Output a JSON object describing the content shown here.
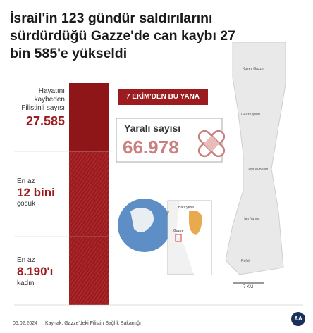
{
  "title": "İsrail'in 123 gündür saldırılarını sürdürdüğü Gazze'de can kaybı 27 bin 585'e yükseldi",
  "killed": {
    "label": "Hayatını kaybeden Filistinli sayısı",
    "value": "27.585"
  },
  "children": {
    "prefix": "En az",
    "value": "12 bini",
    "suffix": "çocuk"
  },
  "women": {
    "prefix": "En az",
    "value": "8.190'ı",
    "suffix": "kadın"
  },
  "banner": "7 EKİM'DEN BU YANA",
  "injured": {
    "label": "Yaralı sayısı",
    "value": "66.978"
  },
  "inset_labels": [
    "Batı Şeria",
    "Gazze"
  ],
  "map_labels": [
    "Kuzey Gazze",
    "Gazze şehri",
    "Deyr el-Belah",
    "Han Yunus",
    "Refah"
  ],
  "scale": "7 KM",
  "footer": {
    "date": "06.02.2024",
    "source": "Kaynak: Gazze'deki Filistin Sağlık Bakanlığı",
    "logo": "AA"
  }
}
